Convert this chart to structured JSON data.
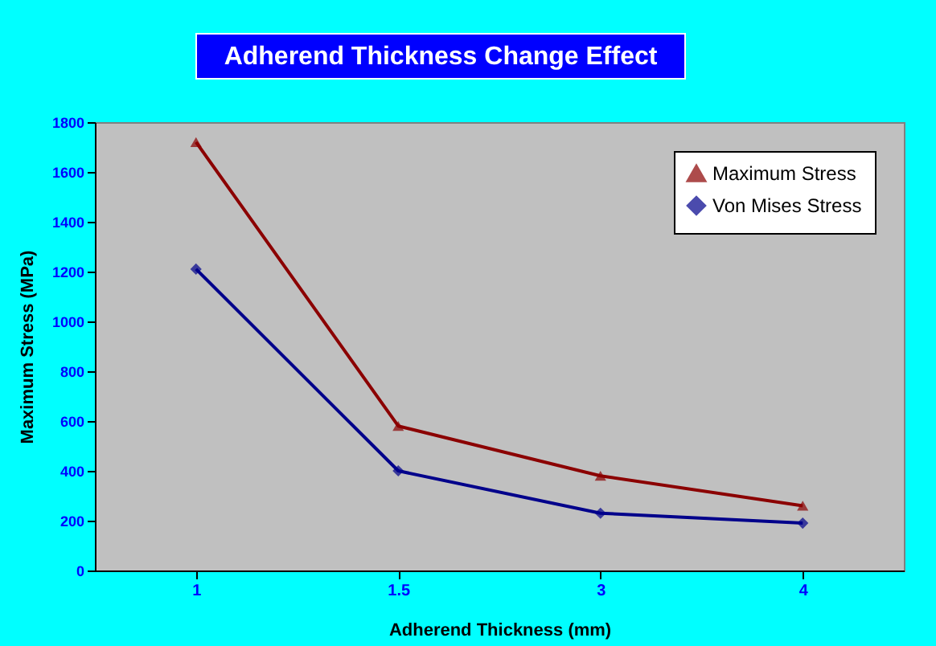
{
  "chart_data": {
    "type": "line",
    "title": "Adherend Thickness Change Effect",
    "xlabel": "Adherend Thickness (mm)",
    "ylabel": "Maximum Stress (MPa)",
    "categories": [
      "1",
      "1.5",
      "3",
      "4"
    ],
    "series": [
      {
        "name": "Maximum Stress",
        "color": "#8b0000",
        "marker": "triangle",
        "values": [
          1720,
          580,
          380,
          260
        ]
      },
      {
        "name": "Von Mises Stress",
        "color": "#00008b",
        "marker": "diamond",
        "values": [
          1210,
          400,
          230,
          190
        ]
      }
    ],
    "ylim": [
      0,
      1800
    ],
    "yticks": [
      0,
      200,
      400,
      600,
      800,
      1000,
      1200,
      1400,
      1600,
      1800
    ],
    "grid": false,
    "legend": "top right",
    "line_style": "solid"
  }
}
